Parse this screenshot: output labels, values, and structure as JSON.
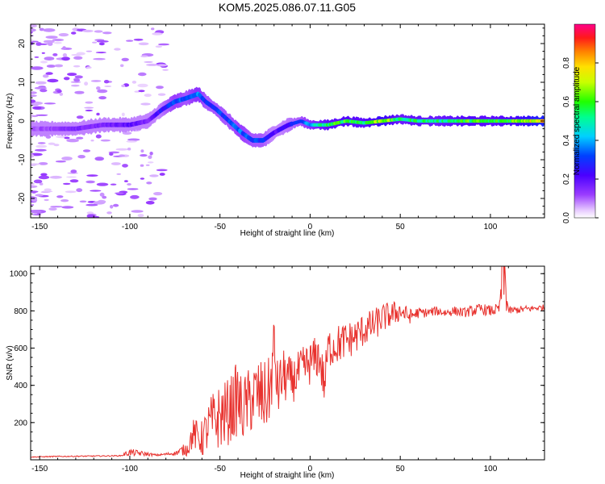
{
  "title": "KOM5.2025.086.07.11.G05",
  "colors": {
    "snr_line": "#e8322e",
    "frame": "#000000"
  },
  "chart_data": [
    {
      "type": "heatmap",
      "xlabel": "Height of straight line (km)",
      "ylabel": "Frequency (Hz)",
      "xlim": [
        -155,
        130
      ],
      "ylim": [
        -25,
        25
      ],
      "x_ticks": [
        -150,
        -100,
        -50,
        0,
        50,
        100
      ],
      "y_ticks": [
        -20,
        -10,
        0,
        10,
        20
      ],
      "colorbar": {
        "label": "Normalized spectral amplitude",
        "range": [
          0,
          1
        ],
        "ticks": [
          "0.0",
          "0.2",
          "0.4",
          "0.6",
          "0.8"
        ],
        "colormap": "rainbow (purple → blue → cyan → green → yellow → orange → red → magenta)"
      },
      "ridge": {
        "x": [
          -155,
          -130,
          -115,
          -100,
          -90,
          -82,
          -75,
          -68,
          -62,
          -58,
          -52,
          -45,
          -38,
          -32,
          -26,
          -20,
          -12,
          -5,
          0,
          10,
          20,
          30,
          40,
          50,
          60,
          70,
          80,
          90,
          100,
          110,
          120,
          130
        ],
        "freq": [
          -2,
          -2,
          -1,
          -1,
          0,
          3,
          5,
          6,
          7,
          5,
          3,
          0,
          -3,
          -5,
          -5,
          -3,
          -1,
          0,
          -1,
          -1,
          0,
          -0.5,
          0,
          0.5,
          0,
          0,
          0,
          0,
          0,
          0,
          0,
          0
        ],
        "amplitude": [
          0.1,
          0.15,
          0.15,
          0.2,
          0.15,
          0.25,
          0.35,
          0.3,
          0.4,
          0.3,
          0.3,
          0.3,
          0.35,
          0.3,
          0.3,
          0.2,
          0.25,
          0.3,
          0.4,
          0.55,
          0.6,
          0.55,
          0.7,
          0.5,
          0.55,
          0.5,
          0.55,
          0.6,
          0.55,
          0.6,
          0.7,
          0.8
        ]
      }
    },
    {
      "type": "line",
      "xlabel": "Height of straight line (km)",
      "ylabel": "SNR (v/v)",
      "xlim": [
        -155,
        130
      ],
      "ylim": [
        0,
        1040
      ],
      "x_ticks": [
        -150,
        -100,
        -50,
        0,
        50,
        100
      ],
      "y_ticks": [
        200,
        400,
        600,
        800,
        1000
      ],
      "series": [
        {
          "x": [
            -155,
            -140,
            -120,
            -105,
            -100,
            -85,
            -75,
            -68,
            -65,
            -60,
            -55,
            -50,
            -45,
            -42,
            -40,
            -38,
            -35,
            -30,
            -25,
            -22,
            -20,
            -18,
            -15,
            -10,
            -5,
            0,
            5,
            8,
            10,
            15,
            20,
            25,
            30,
            35,
            40,
            45,
            50,
            55,
            60,
            65,
            70,
            75,
            80,
            85,
            90,
            95,
            100,
            105,
            107,
            110,
            115,
            120,
            125,
            130
          ],
          "y": [
            15,
            18,
            20,
            22,
            40,
            25,
            35,
            60,
            140,
            110,
            200,
            230,
            260,
            300,
            340,
            260,
            300,
            350,
            330,
            380,
            600,
            370,
            450,
            420,
            480,
            520,
            560,
            400,
            600,
            620,
            640,
            660,
            700,
            720,
            760,
            780,
            800,
            770,
            790,
            790,
            800,
            790,
            800,
            790,
            800,
            810,
            800,
            810,
            1040,
            800,
            805,
            810,
            815,
            820
          ],
          "envelope": [
            2,
            3,
            3,
            3,
            20,
            5,
            10,
            40,
            80,
            100,
            150,
            180,
            180,
            200,
            200,
            180,
            180,
            200,
            200,
            180,
            200,
            150,
            150,
            120,
            120,
            120,
            120,
            120,
            110,
            110,
            100,
            100,
            90,
            90,
            80,
            70,
            60,
            40,
            30,
            25,
            25,
            25,
            25,
            25,
            30,
            30,
            30,
            30,
            250,
            20,
            20,
            20,
            15,
            15
          ]
        }
      ]
    }
  ]
}
